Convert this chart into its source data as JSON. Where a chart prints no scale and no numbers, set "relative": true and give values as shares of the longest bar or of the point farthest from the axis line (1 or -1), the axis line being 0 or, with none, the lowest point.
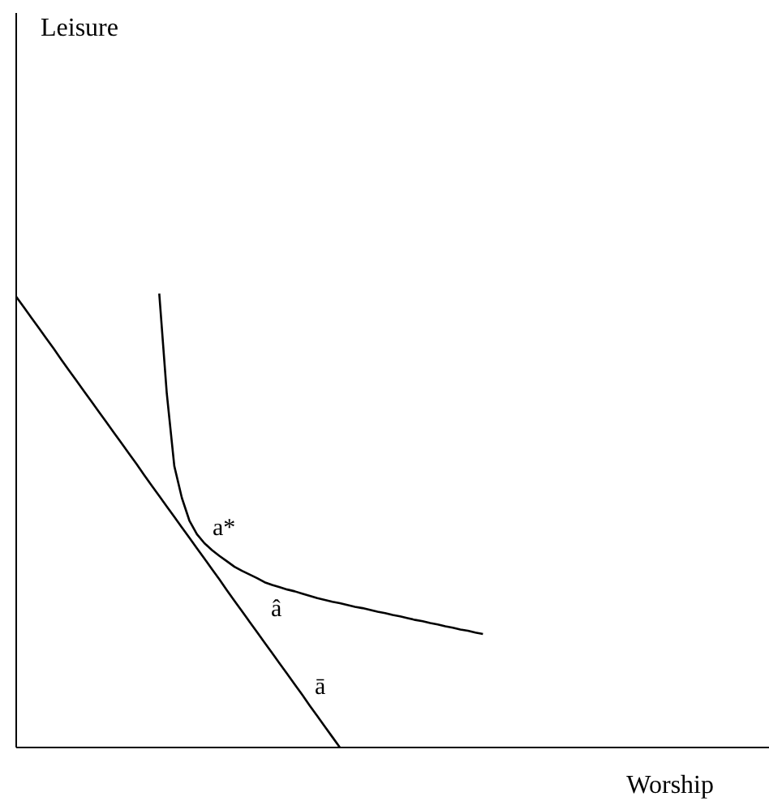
{
  "chart_data": {
    "type": "line",
    "relative": true,
    "xlabel": "Worship",
    "marker": "none",
    "line_style": "solid",
    "categories": [
      null,
      null,
      null,
      null,
      null,
      null,
      null,
      null,
      null,
      null,
      null,
      null,
      null,
      null,
      null,
      null,
      null,
      null,
      null,
      null,
      null,
      null,
      null,
      null,
      null,
      null,
      null,
      null,
      null,
      null,
      null,
      null,
      null,
      null,
      null,
      null,
      null,
      null,
      null,
      null,
      null,
      null,
      null,
      null,
      null,
      null,
      null,
      null,
      null,
      null,
      null,
      null,
      null,
      null,
      null,
      null,
      null,
      null,
      null,
      null,
      null,
      null,
      null,
      null,
      null,
      null,
      null,
      null,
      null,
      null,
      null,
      null,
      null,
      null,
      null,
      null,
      null,
      null,
      null,
      null,
      null,
      null,
      null,
      null,
      null,
      null,
      null,
      null,
      null,
      null,
      null,
      null,
      null,
      null,
      null,
      null,
      null,
      null,
      null,
      null,
      null
    ],
    "series": [
      {
        "color": "#000000",
        "values": [
          0.993,
          0.97,
          0.947,
          0.924,
          0.901,
          0.878,
          0.854,
          0.831,
          0.808,
          0.785,
          0.762,
          0.739,
          0.716,
          0.693,
          0.67,
          0.647,
          0.624,
          0.6,
          0.577,
          0.554,
          0.531,
          0.508,
          0.485,
          0.462,
          0.439,
          0.416,
          0.393,
          0.37,
          0.346,
          0.323,
          0.3,
          0.277,
          0.254,
          0.231,
          0.208,
          0.185,
          0.162,
          0.139,
          0.116,
          0.092,
          0.069,
          0.046,
          0.023,
          0,
          null,
          null,
          null,
          null,
          null,
          null,
          null,
          null,
          null,
          null,
          null,
          null,
          null,
          null,
          null,
          null,
          null,
          null,
          null,
          null,
          null,
          null,
          null,
          null,
          null,
          null,
          null,
          null,
          null,
          null,
          null,
          null,
          null,
          null,
          null,
          null,
          null,
          null,
          null,
          null,
          null,
          null,
          null,
          null,
          null,
          null,
          null,
          null,
          null,
          null,
          null,
          null,
          null,
          null,
          null,
          null,
          null
        ]
      },
      {
        "color": "#000000",
        "values": [
          null,
          null,
          null,
          null,
          null,
          null,
          null,
          null,
          null,
          null,
          null,
          null,
          null,
          null,
          null,
          null,
          null,
          null,
          null,
          1.0,
          0.78,
          0.62,
          0.55,
          0.5,
          0.47,
          0.45,
          0.435,
          0.422,
          0.41,
          0.398,
          0.389,
          0.381,
          0.373,
          0.364,
          0.358,
          0.353,
          0.348,
          0.344,
          0.339,
          0.334,
          0.329,
          0.325,
          0.321,
          0.318,
          0.314,
          0.31,
          0.307,
          0.303,
          0.299,
          0.296,
          0.292,
          0.289,
          0.285,
          0.281,
          0.278,
          0.274,
          0.271,
          0.267,
          0.264,
          0.26,
          0.257,
          0.253,
          0.25,
          null,
          null,
          null,
          null,
          null,
          null,
          null,
          null,
          null,
          null,
          null,
          null,
          null,
          null,
          null,
          null,
          null,
          null,
          null,
          null,
          null,
          null,
          null,
          null,
          null,
          null,
          null,
          null,
          null,
          null,
          null,
          null,
          null,
          null,
          null,
          null,
          null,
          null
        ]
      }
    ],
    "annotations": [
      "Leisure",
      "a*",
      "â",
      "ā"
    ]
  }
}
